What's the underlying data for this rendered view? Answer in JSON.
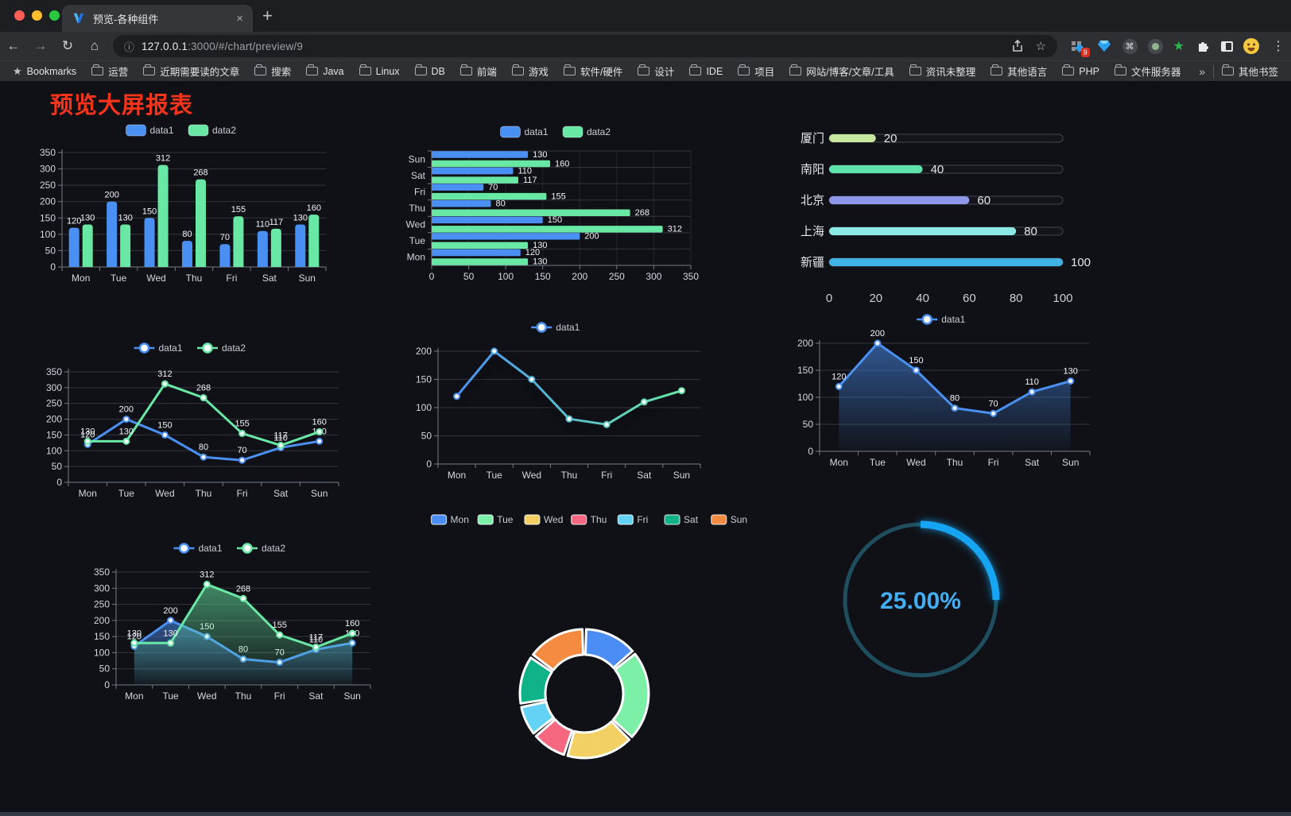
{
  "browser": {
    "tab_title": "预览-各种组件",
    "close": "×",
    "new_tab": "+",
    "url_host": "127.0.0.1",
    "url_rest": ":3000/#/chart/preview/9",
    "badge": "9"
  },
  "icons": {
    "back": "←",
    "forward": "→",
    "reload": "↻",
    "home": "⌂",
    "info": "ⓘ",
    "star": "☆",
    "bookmarks_star": "★",
    "menu": "⋮",
    "command": "⌘",
    "ext_star": "★"
  },
  "bookmarks": {
    "root": "Bookmarks",
    "folders": [
      "运营",
      "近期需要读的文章",
      "搜索",
      "Java",
      "Linux",
      "DB",
      "前端",
      "游戏",
      "软件/硬件",
      "设计",
      "IDE",
      "项目",
      "网站/博客/文章/工具",
      "资讯未整理",
      "其他语言",
      "PHP",
      "文件服务器"
    ],
    "overflow": "»",
    "other": "其他书签"
  },
  "page": {
    "title": "预览大屏报表",
    "title_color": "#f5351b",
    "background": "#101117"
  },
  "chart_data": [
    {
      "id": "c1",
      "type": "bar",
      "orientation": "vertical",
      "categories": [
        "Mon",
        "Tue",
        "Wed",
        "Thu",
        "Fri",
        "Sat",
        "Sun"
      ],
      "series": [
        {
          "name": "data1",
          "color": "#4a90f2",
          "values": [
            120,
            200,
            150,
            80,
            70,
            110,
            130
          ]
        },
        {
          "name": "data2",
          "color": "#68e8a4",
          "values": [
            130,
            130,
            312,
            268,
            155,
            117,
            160
          ]
        }
      ],
      "ylim": [
        0,
        350
      ],
      "ytick": 50,
      "value_labels": true,
      "legend_position": "top"
    },
    {
      "id": "c2",
      "type": "bar",
      "orientation": "horizontal",
      "categories": [
        "Mon",
        "Tue",
        "Wed",
        "Thu",
        "Fri",
        "Sat",
        "Sun"
      ],
      "series": [
        {
          "name": "data1",
          "color": "#4a90f2",
          "values": [
            120,
            200,
            150,
            80,
            70,
            110,
            130
          ]
        },
        {
          "name": "data2",
          "color": "#68e8a4",
          "values": [
            130,
            130,
            312,
            268,
            155,
            117,
            160
          ]
        }
      ],
      "xlim": [
        0,
        350
      ],
      "xtick": 50,
      "value_labels": true,
      "legend_position": "top"
    },
    {
      "id": "c3",
      "type": "bar",
      "subtype": "capsule",
      "categories": [
        "厦门",
        "南阳",
        "北京",
        "上海",
        "新疆"
      ],
      "values": [
        20,
        40,
        60,
        80,
        100
      ],
      "colors": [
        "#c8e8a0",
        "#5fe3ac",
        "#8e97e8",
        "#8ce8e2",
        "#3fb2e6"
      ],
      "xlim": [
        0,
        100
      ],
      "xticks": [
        0,
        20,
        40,
        60,
        80,
        100
      ],
      "value_labels": true
    },
    {
      "id": "c4",
      "type": "line",
      "categories": [
        "Mon",
        "Tue",
        "Wed",
        "Thu",
        "Fri",
        "Sat",
        "Sun"
      ],
      "series": [
        {
          "name": "data1",
          "color": "#4a90f2",
          "values": [
            120,
            200,
            150,
            80,
            70,
            110,
            130
          ]
        },
        {
          "name": "data2",
          "color": "#68e8a4",
          "values": [
            130,
            130,
            312,
            268,
            155,
            117,
            160
          ]
        }
      ],
      "ylim": [
        0,
        350
      ],
      "ytick": 50,
      "value_labels": true,
      "markers": true,
      "legend_position": "top"
    },
    {
      "id": "c5",
      "type": "line",
      "gradient_line": true,
      "shadow": true,
      "categories": [
        "Mon",
        "Tue",
        "Wed",
        "Thu",
        "Fri",
        "Sat",
        "Sun"
      ],
      "series": [
        {
          "name": "data1",
          "color": "#4a90f2",
          "color2": "#68e8a4",
          "values": [
            120,
            200,
            150,
            80,
            70,
            110,
            130
          ]
        }
      ],
      "ylim": [
        0,
        200
      ],
      "ytick": 50,
      "value_labels": false,
      "markers": true,
      "legend_position": "top"
    },
    {
      "id": "c6",
      "type": "line",
      "area": true,
      "categories": [
        "Mon",
        "Tue",
        "Wed",
        "Thu",
        "Fri",
        "Sat",
        "Sun"
      ],
      "series": [
        {
          "name": "data1",
          "color": "#4a90f2",
          "values": [
            120,
            200,
            150,
            80,
            70,
            110,
            130
          ]
        }
      ],
      "ylim": [
        0,
        200
      ],
      "ytick": 50,
      "value_labels": true,
      "markers": true,
      "legend_position": "top"
    },
    {
      "id": "c7",
      "type": "line",
      "area": true,
      "categories": [
        "Mon",
        "Tue",
        "Wed",
        "Thu",
        "Fri",
        "Sat",
        "Sun"
      ],
      "series": [
        {
          "name": "data1",
          "color": "#4a90f2",
          "values": [
            120,
            200,
            150,
            80,
            70,
            110,
            130
          ]
        },
        {
          "name": "data2",
          "color": "#68e8a4",
          "values": [
            130,
            130,
            312,
            268,
            155,
            117,
            160
          ]
        }
      ],
      "ylim": [
        0,
        350
      ],
      "ytick": 50,
      "value_labels": true,
      "markers": true,
      "legend_position": "top"
    },
    {
      "id": "c8",
      "type": "pie",
      "subtype": "donut",
      "categories": [
        "Mon",
        "Tue",
        "Wed",
        "Thu",
        "Fri",
        "Sat",
        "Sun"
      ],
      "values": [
        120,
        200,
        150,
        80,
        70,
        110,
        130
      ],
      "colors": [
        "#4a8ef5",
        "#7df0a7",
        "#f2d064",
        "#f5687f",
        "#63d2f5",
        "#10b287",
        "#f58b40"
      ],
      "legend_position": "top"
    },
    {
      "id": "c9",
      "type": "gauge",
      "value": 25,
      "label": "25.00%",
      "arc_color": "#17a5f2",
      "track_color": "#1f4f5e",
      "text_color": "#44aef2"
    }
  ]
}
